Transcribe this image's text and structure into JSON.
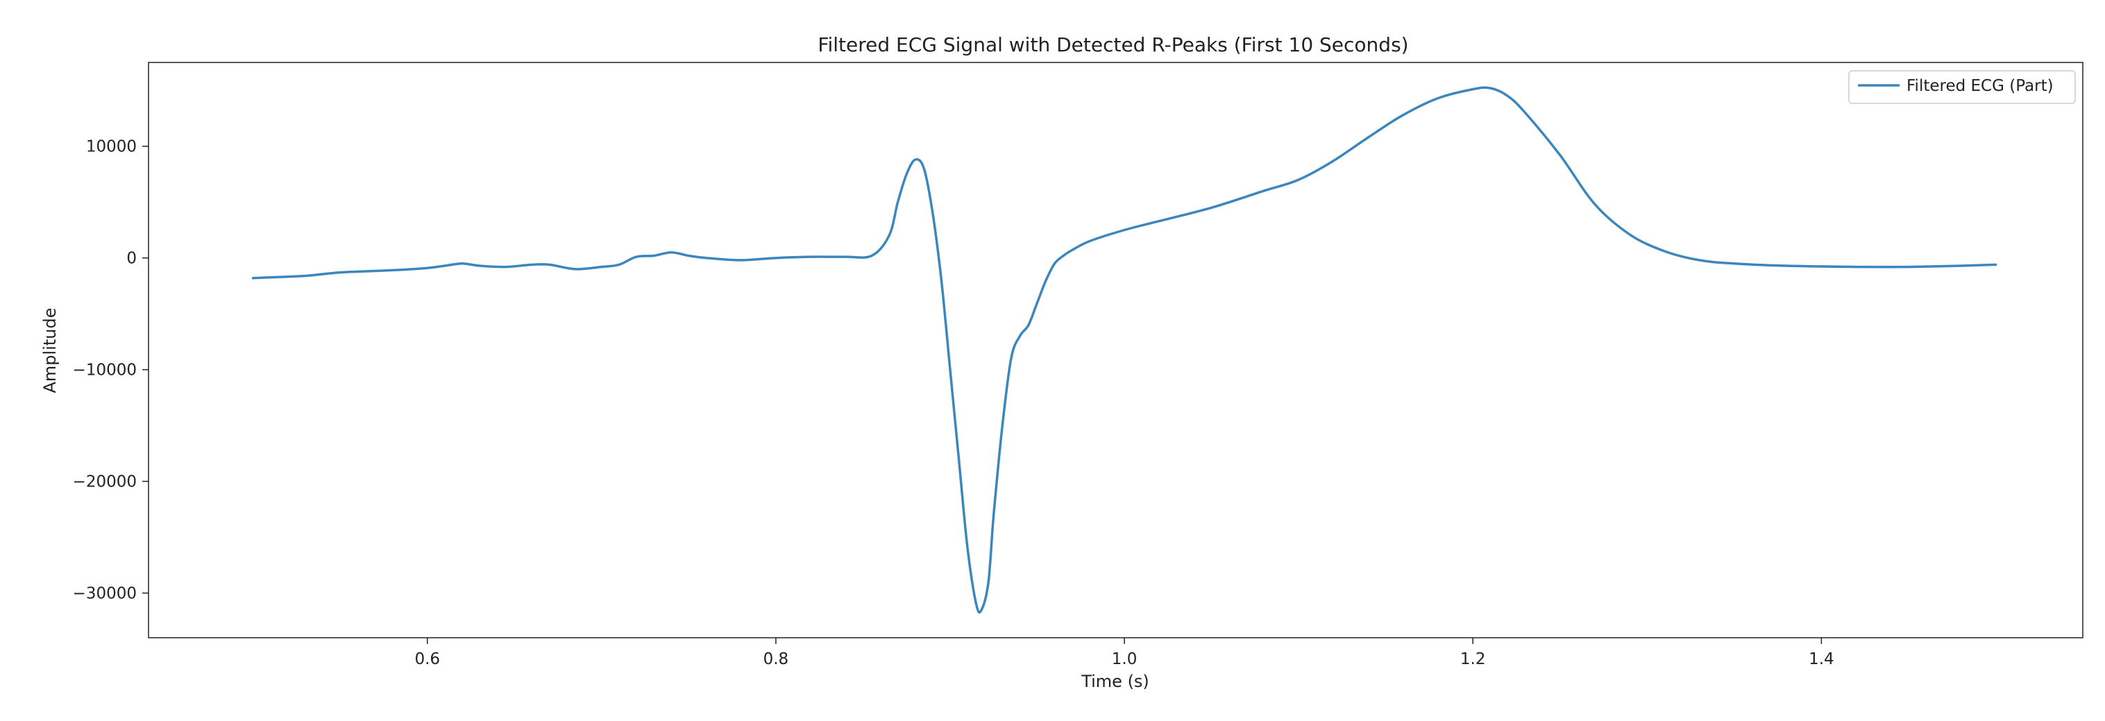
{
  "chart_data": {
    "type": "line",
    "title": "Filtered ECG Signal with Detected R-Peaks (First 10 Seconds)",
    "xlabel": "Time (s)",
    "ylabel": "Amplitude",
    "xlim": [
      0.44,
      1.55
    ],
    "ylim": [
      -34000,
      17500
    ],
    "xticks": [
      0.6,
      0.8,
      1.0,
      1.2,
      1.4
    ],
    "xtick_labels": [
      "0.6",
      "0.8",
      "1.0",
      "1.2",
      "1.4"
    ],
    "yticks": [
      10000,
      0,
      -10000,
      -20000,
      -30000
    ],
    "ytick_labels": [
      "10000",
      "0",
      "−10000",
      "−20000",
      "−30000"
    ],
    "grid": false,
    "legend": "top-right",
    "series": [
      {
        "name": "Filtered ECG (Part)",
        "color": "#3b87bd",
        "x": [
          0.5,
          0.53,
          0.55,
          0.58,
          0.6,
          0.61,
          0.62,
          0.63,
          0.645,
          0.66,
          0.67,
          0.685,
          0.7,
          0.71,
          0.72,
          0.73,
          0.74,
          0.75,
          0.76,
          0.78,
          0.8,
          0.82,
          0.84,
          0.855,
          0.865,
          0.87,
          0.875,
          0.88,
          0.885,
          0.89,
          0.895,
          0.9,
          0.905,
          0.91,
          0.915,
          0.918,
          0.922,
          0.925,
          0.93,
          0.935,
          0.94,
          0.945,
          0.95,
          0.955,
          0.96,
          0.965,
          0.97,
          0.98,
          1.0,
          1.02,
          1.05,
          1.08,
          1.1,
          1.12,
          1.14,
          1.16,
          1.18,
          1.2,
          1.21,
          1.22,
          1.23,
          1.25,
          1.27,
          1.29,
          1.31,
          1.33,
          1.35,
          1.38,
          1.42,
          1.45,
          1.48,
          1.5
        ],
        "y": [
          -1800,
          -1600,
          -1300,
          -1100,
          -900,
          -700,
          -500,
          -700,
          -800,
          -600,
          -600,
          -1000,
          -800,
          -600,
          100,
          200,
          500,
          200,
          0,
          -200,
          0,
          100,
          100,
          200,
          2000,
          5000,
          7500,
          8800,
          8000,
          4000,
          -2000,
          -10000,
          -18000,
          -26000,
          -31000,
          -31500,
          -29000,
          -23000,
          -15000,
          -9000,
          -7000,
          -6000,
          -4000,
          -2000,
          -500,
          200,
          700,
          1500,
          2500,
          3300,
          4500,
          6000,
          7000,
          8700,
          10800,
          12800,
          14300,
          15100,
          15200,
          14500,
          13000,
          9200,
          4800,
          2100,
          600,
          -200,
          -500,
          -700,
          -800,
          -800,
          -700,
          -600
        ]
      }
    ]
  }
}
